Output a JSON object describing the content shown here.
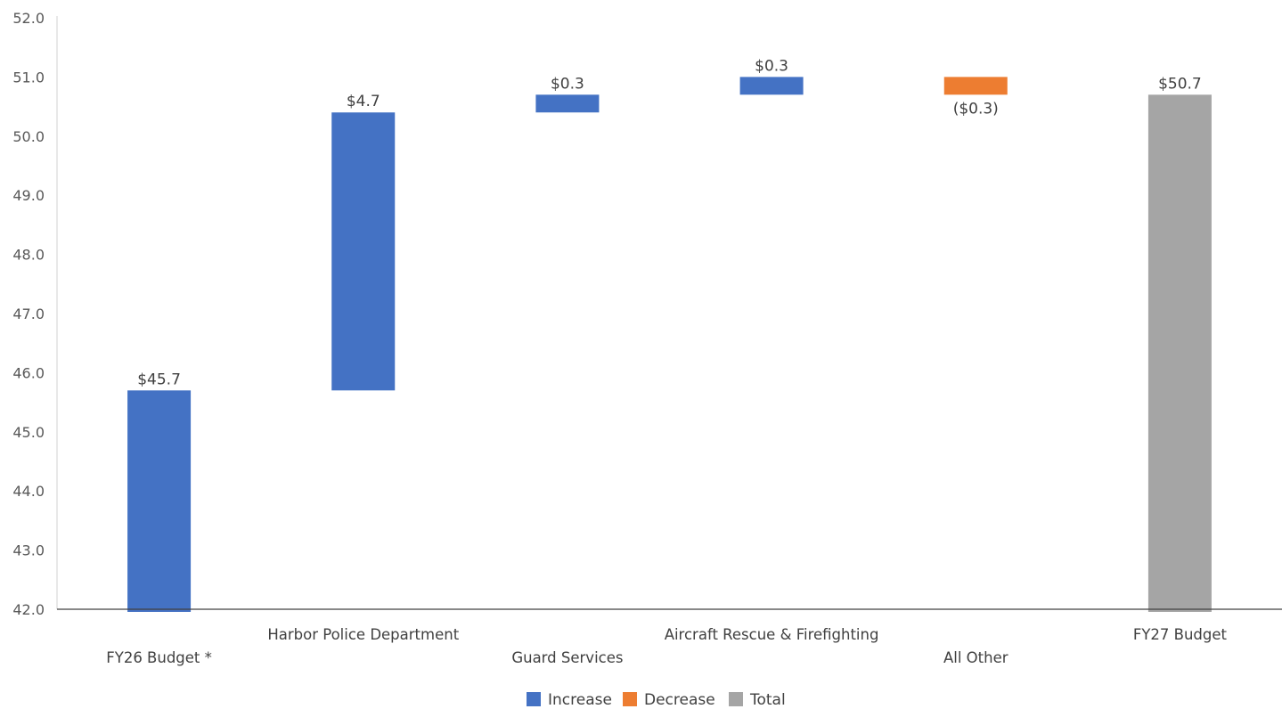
{
  "chart_data": {
    "type": "waterfall",
    "title": "",
    "xlabel": "",
    "ylabel": "",
    "ylim": [
      42.0,
      52.0
    ],
    "yticks": [
      42.0,
      43.0,
      44.0,
      45.0,
      46.0,
      47.0,
      48.0,
      49.0,
      50.0,
      51.0,
      52.0
    ],
    "grid": false,
    "legend_position": "bottom",
    "categories": [
      "FY26 Budget *",
      "Harbor Police Department",
      "Guard Services",
      "Aircraft Rescue & Firefighting",
      "All Other",
      "FY27 Budget"
    ],
    "bars": [
      {
        "category": "FY26 Budget *",
        "kind": "increase",
        "start": 0,
        "end": 45.7,
        "label": "$45.7"
      },
      {
        "category": "Harbor Police Department",
        "kind": "increase",
        "start": 45.7,
        "end": 50.4,
        "label": "$4.7"
      },
      {
        "category": "Guard Services",
        "kind": "increase",
        "start": 50.4,
        "end": 50.7,
        "label": "$0.3"
      },
      {
        "category": "Aircraft Rescue & Firefighting",
        "kind": "increase",
        "start": 50.7,
        "end": 51.0,
        "label": "$0.3"
      },
      {
        "category": "All Other",
        "kind": "decrease",
        "start": 51.0,
        "end": 50.7,
        "label": "($0.3)"
      },
      {
        "category": "FY27 Budget",
        "kind": "total",
        "start": 0,
        "end": 50.7,
        "label": "$50.7"
      }
    ],
    "legend": [
      {
        "kind": "increase",
        "label": "Increase"
      },
      {
        "kind": "decrease",
        "label": "Decrease"
      },
      {
        "kind": "total",
        "label": "Total"
      }
    ],
    "colors": {
      "increase": "#4472C4",
      "decrease": "#ED7D31",
      "total": "#A5A5A5",
      "axis": "#404040",
      "tick_text": "#595959"
    }
  }
}
